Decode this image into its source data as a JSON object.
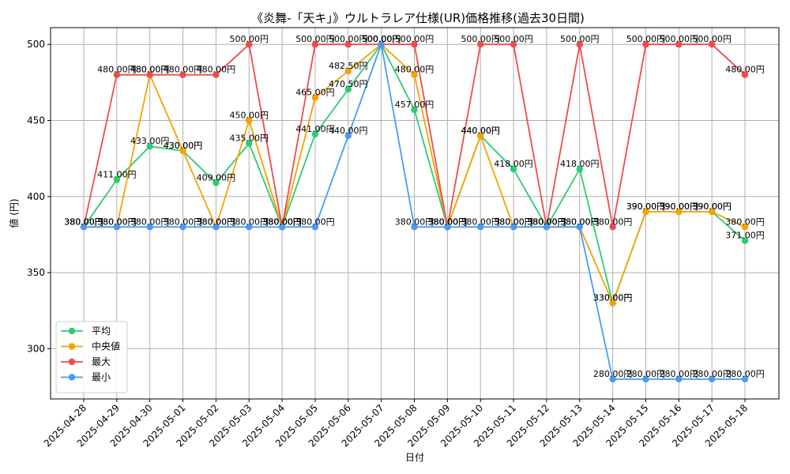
{
  "chart_data": {
    "type": "line",
    "title": "《炎舞-「天キ」》ウルトラレア仕様(UR)価格推移(過去30日間)",
    "xlabel": "日付",
    "ylabel": "値 (円)",
    "ylim": [
      267,
      511
    ],
    "yticks": [
      300,
      350,
      400,
      450,
      500
    ],
    "grid": true,
    "legend_position": "lower-left",
    "label_suffix": "円",
    "categories": [
      "2025-04-28",
      "2025-04-29",
      "2025-04-30",
      "2025-05-01",
      "2025-05-02",
      "2025-05-03",
      "2025-05-04",
      "2025-05-05",
      "2025-05-06",
      "2025-05-07",
      "2025-05-08",
      "2025-05-09",
      "2025-05-10",
      "2025-05-11",
      "2025-05-12",
      "2025-05-13",
      "2025-05-14",
      "2025-05-15",
      "2025-05-16",
      "2025-05-17",
      "2025-05-18"
    ],
    "series": [
      {
        "name": "平均",
        "color": "#2ecc71",
        "values": [
          380,
          411,
          433,
          430,
          409,
          435,
          380,
          441,
          470.5,
          500,
          457,
          380,
          440,
          418,
          380,
          418,
          330,
          390,
          390,
          390,
          371
        ]
      },
      {
        "name": "中央値",
        "color": "#f5a300",
        "values": [
          380,
          380,
          480,
          430,
          380,
          450,
          380,
          465,
          482.5,
          500,
          480,
          380,
          440,
          380,
          380,
          380,
          330,
          390,
          390,
          390,
          380
        ]
      },
      {
        "name": "最大",
        "color": "#ee4b4b",
        "values": [
          380,
          480,
          480,
          480,
          480,
          500,
          380,
          500,
          500,
          500,
          500,
          380,
          500,
          500,
          380,
          500,
          380,
          500,
          500,
          500,
          480
        ]
      },
      {
        "name": "最小",
        "color": "#4a9af5",
        "values": [
          380,
          380,
          380,
          380,
          380,
          380,
          380,
          380,
          440,
          500,
          380,
          380,
          380,
          380,
          380,
          380,
          280,
          280,
          280,
          280,
          280
        ]
      }
    ]
  }
}
